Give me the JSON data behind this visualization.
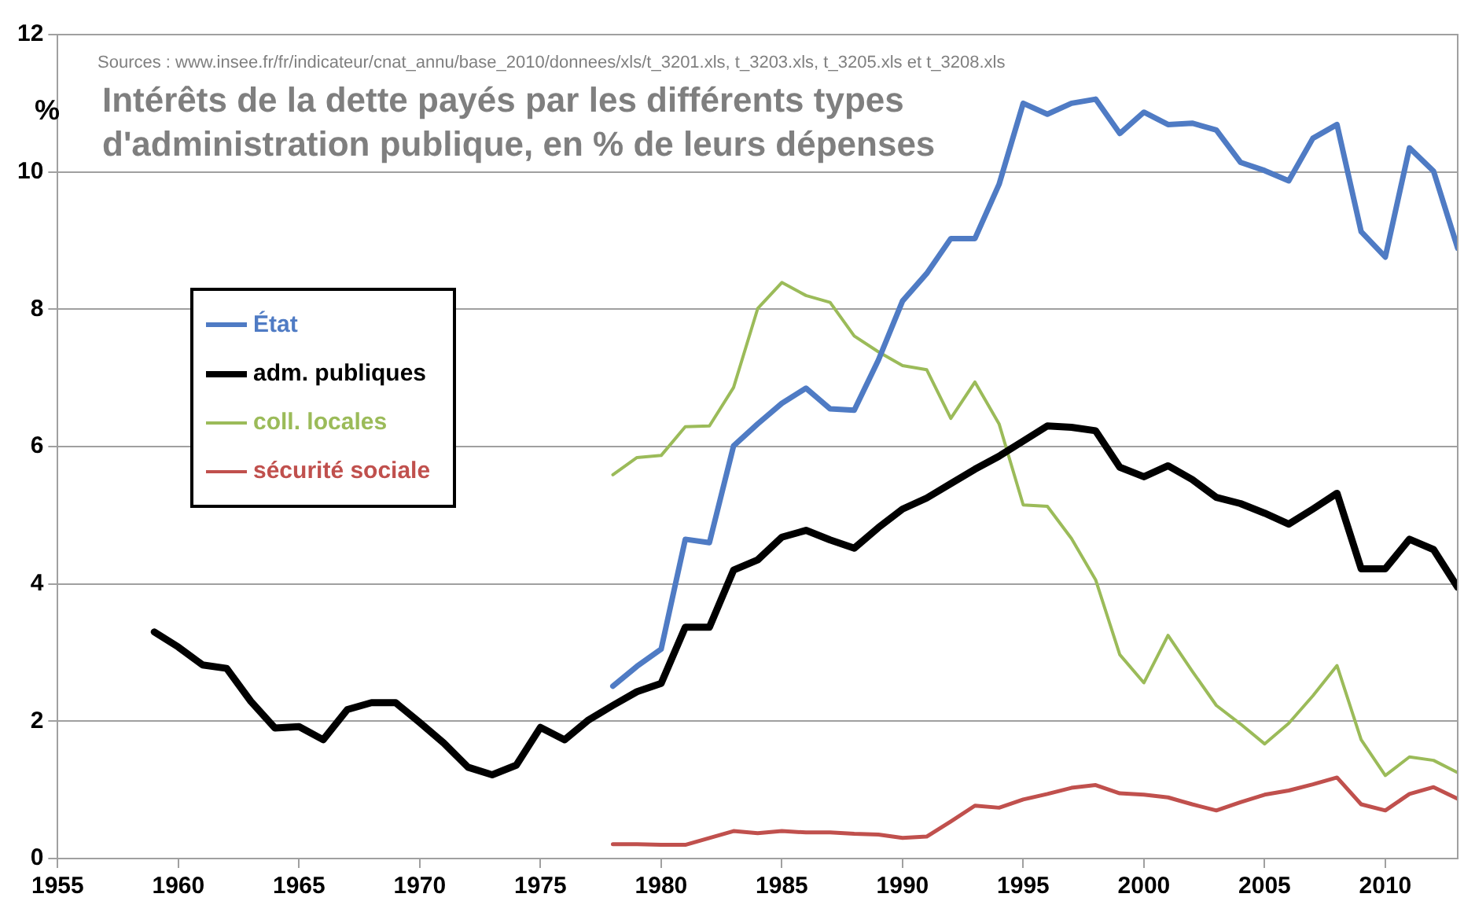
{
  "chart_data": {
    "type": "line",
    "title": "Intérêts de la dette payés par les différents types d'administration publique, en % de leurs dépenses",
    "ylabel": "%",
    "annotations": [
      "Sources : www.insee.fr/fr/indicateur/cnat_annu/base_2010/donnees/xls/t_3201.xls, t_3203.xls, t_3205.xls et t_3208.xls"
    ],
    "xlim": [
      1955,
      2013
    ],
    "xticks": [
      1955,
      1960,
      1965,
      1970,
      1975,
      1980,
      1985,
      1990,
      1995,
      2000,
      2005,
      2010
    ],
    "ylim": [
      0,
      12
    ],
    "yticks": [
      0,
      2,
      4,
      6,
      8,
      10,
      12
    ],
    "grid": "y",
    "legend": "left",
    "marker": "none",
    "line_style": "solid",
    "series": [
      {
        "name": "État",
        "color": "#4f7bc4",
        "x": [
          1978,
          1979,
          1980,
          1981,
          1982,
          1983,
          1984,
          1985,
          1986,
          1987,
          1988,
          1989,
          1990,
          1991,
          1992,
          1993,
          1994,
          1995,
          1996,
          1997,
          1998,
          1999,
          2000,
          2001,
          2002,
          2003,
          2004,
          2005,
          2006,
          2007,
          2008,
          2009,
          2010,
          2011,
          2012,
          2013
        ],
        "values": [
          2.51,
          2.8,
          3.05,
          4.65,
          4.6,
          6.01,
          6.33,
          6.63,
          6.85,
          6.55,
          6.53,
          7.26,
          8.12,
          8.52,
          9.03,
          9.03,
          9.82,
          11.0,
          10.84,
          11.0,
          11.06,
          10.56,
          10.87,
          10.69,
          10.71,
          10.61,
          10.14,
          10.02,
          9.87,
          10.49,
          10.69,
          9.13,
          8.76,
          10.35,
          10.01,
          8.89
        ]
      },
      {
        "name": "adm. publiques",
        "color": "#000000",
        "x": [
          1959,
          1960,
          1961,
          1962,
          1963,
          1964,
          1965,
          1966,
          1967,
          1968,
          1969,
          1970,
          1971,
          1972,
          1973,
          1974,
          1975,
          1976,
          1977,
          1978,
          1979,
          1980,
          1981,
          1982,
          1983,
          1984,
          1985,
          1986,
          1987,
          1988,
          1989,
          1990,
          1991,
          1992,
          1993,
          1994,
          1995,
          1996,
          1997,
          1998,
          1999,
          2000,
          2001,
          2002,
          2003,
          2004,
          2005,
          2006,
          2007,
          2008,
          2009,
          2010,
          2011,
          2012,
          2013
        ],
        "values": [
          3.3,
          3.08,
          2.82,
          2.77,
          2.29,
          1.9,
          1.92,
          1.73,
          2.17,
          2.27,
          2.27,
          1.98,
          1.68,
          1.33,
          1.22,
          1.36,
          1.91,
          1.73,
          2.02,
          2.23,
          2.43,
          2.55,
          3.37,
          3.37,
          4.2,
          4.35,
          4.68,
          4.78,
          4.64,
          4.52,
          4.82,
          5.09,
          5.25,
          5.46,
          5.67,
          5.86,
          6.08,
          6.3,
          6.28,
          6.23,
          5.7,
          5.56,
          5.72,
          5.52,
          5.26,
          5.17,
          5.03,
          4.87,
          5.09,
          5.32,
          4.22,
          4.22,
          4.65,
          4.5,
          3.95
        ]
      },
      {
        "name": "coll. locales",
        "color": "#9bbb59",
        "x": [
          1978,
          1979,
          1980,
          1981,
          1982,
          1983,
          1984,
          1985,
          1986,
          1987,
          1988,
          1989,
          1990,
          1991,
          1992,
          1993,
          1994,
          1995,
          1996,
          1997,
          1998,
          1999,
          2000,
          2001,
          2002,
          2003,
          2004,
          2005,
          2006,
          2007,
          2008,
          2009,
          2010,
          2011,
          2012,
          2013
        ],
        "values": [
          5.59,
          5.84,
          5.87,
          6.29,
          6.3,
          6.86,
          8.01,
          8.39,
          8.2,
          8.1,
          7.61,
          7.38,
          7.18,
          7.12,
          6.41,
          6.94,
          6.33,
          5.15,
          5.13,
          4.66,
          4.06,
          2.97,
          2.56,
          3.25,
          2.73,
          2.23,
          1.96,
          1.67,
          1.97,
          2.37,
          2.81,
          1.73,
          1.21,
          1.48,
          1.43,
          1.25
        ]
      },
      {
        "name": "sécurité sociale",
        "color": "#c0504d",
        "x": [
          1978,
          1979,
          1980,
          1981,
          1982,
          1983,
          1984,
          1985,
          1986,
          1987,
          1988,
          1989,
          1990,
          1991,
          1992,
          1993,
          1994,
          1995,
          1996,
          1997,
          1998,
          1999,
          2000,
          2001,
          2002,
          2003,
          2004,
          2005,
          2006,
          2007,
          2008,
          2009,
          2010,
          2011,
          2012,
          2013
        ],
        "values": [
          0.21,
          0.21,
          0.2,
          0.2,
          0.3,
          0.4,
          0.37,
          0.4,
          0.38,
          0.38,
          0.36,
          0.35,
          0.3,
          0.32,
          0.54,
          0.77,
          0.74,
          0.86,
          0.94,
          1.03,
          1.07,
          0.95,
          0.93,
          0.89,
          0.79,
          0.7,
          0.82,
          0.93,
          0.99,
          1.08,
          1.18,
          0.79,
          0.7,
          0.94,
          1.04,
          0.87
        ]
      }
    ]
  }
}
